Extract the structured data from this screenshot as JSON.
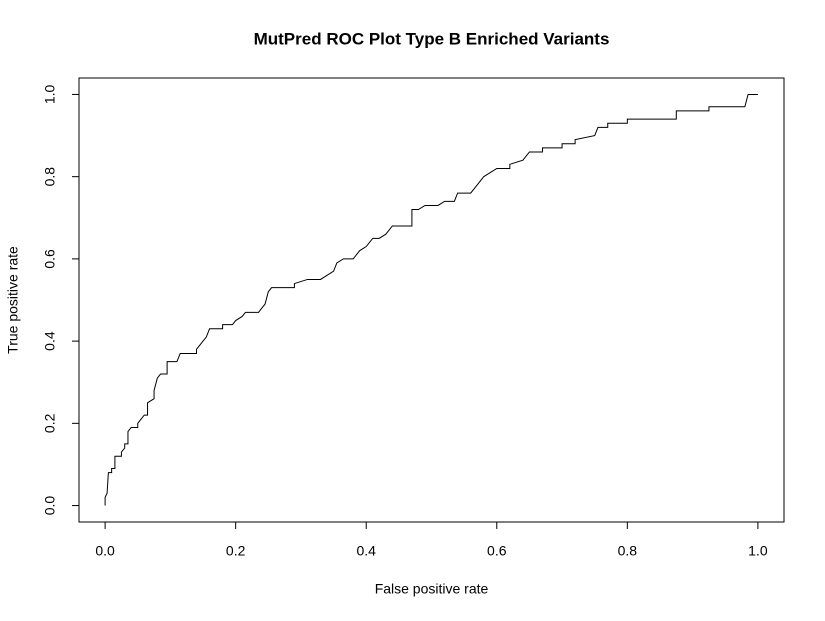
{
  "chart_data": {
    "type": "line",
    "title": "MutPred ROC Plot Type B Enriched Variants",
    "xlabel": "False positive rate",
    "ylabel": "True positive rate",
    "color": "#000000",
    "x": [
      0,
      0,
      0.003,
      0.005,
      0.01,
      0.01,
      0.015,
      0.015,
      0.025,
      0.025,
      0.03,
      0.03,
      0.035,
      0.035,
      0.04,
      0.05,
      0.05,
      0.055,
      0.06,
      0.065,
      0.065,
      0.075,
      0.075,
      0.08,
      0.085,
      0.095,
      0.095,
      0.11,
      0.115,
      0.14,
      0.14,
      0.15,
      0.155,
      0.16,
      0.18,
      0.18,
      0.195,
      0.2,
      0.21,
      0.215,
      0.235,
      0.24,
      0.245,
      0.25,
      0.255,
      0.29,
      0.29,
      0.31,
      0.33,
      0.34,
      0.35,
      0.355,
      0.365,
      0.38,
      0.39,
      0.4,
      0.41,
      0.42,
      0.43,
      0.44,
      0.47,
      0.47,
      0.48,
      0.49,
      0.51,
      0.52,
      0.535,
      0.54,
      0.56,
      0.57,
      0.58,
      0.59,
      0.6,
      0.62,
      0.62,
      0.64,
      0.65,
      0.67,
      0.67,
      0.7,
      0.7,
      0.72,
      0.72,
      0.75,
      0.755,
      0.77,
      0.77,
      0.8,
      0.8,
      0.875,
      0.875,
      0.925,
      0.925,
      0.98,
      0.985,
      1.0
    ],
    "values": [
      0,
      0.02,
      0.03,
      0.08,
      0.08,
      0.09,
      0.09,
      0.12,
      0.12,
      0.13,
      0.14,
      0.15,
      0.15,
      0.18,
      0.19,
      0.19,
      0.2,
      0.21,
      0.22,
      0.22,
      0.25,
      0.26,
      0.28,
      0.31,
      0.32,
      0.32,
      0.35,
      0.35,
      0.37,
      0.37,
      0.38,
      0.4,
      0.41,
      0.43,
      0.43,
      0.44,
      0.44,
      0.45,
      0.46,
      0.47,
      0.47,
      0.48,
      0.49,
      0.52,
      0.53,
      0.53,
      0.54,
      0.55,
      0.55,
      0.56,
      0.57,
      0.59,
      0.6,
      0.6,
      0.62,
      0.63,
      0.65,
      0.65,
      0.66,
      0.68,
      0.68,
      0.72,
      0.72,
      0.73,
      0.73,
      0.74,
      0.74,
      0.76,
      0.76,
      0.78,
      0.8,
      0.81,
      0.82,
      0.82,
      0.83,
      0.84,
      0.86,
      0.86,
      0.87,
      0.87,
      0.88,
      0.88,
      0.89,
      0.9,
      0.92,
      0.92,
      0.93,
      0.93,
      0.94,
      0.94,
      0.96,
      0.96,
      0.97,
      0.97,
      1.0,
      1.0
    ],
    "xlim": [
      -0.04,
      1.04
    ],
    "ylim": [
      -0.04,
      1.04
    ],
    "xticks": [
      {
        "value": 0,
        "label": "0.0"
      },
      0.2,
      0.4,
      0.6,
      0.8,
      {
        "value": 1,
        "label": "1.0"
      }
    ],
    "yticks": [
      {
        "value": 0,
        "label": "0.0"
      },
      0.2,
      0.4,
      0.6,
      0.8,
      {
        "value": 1,
        "label": "1.0"
      }
    ]
  }
}
